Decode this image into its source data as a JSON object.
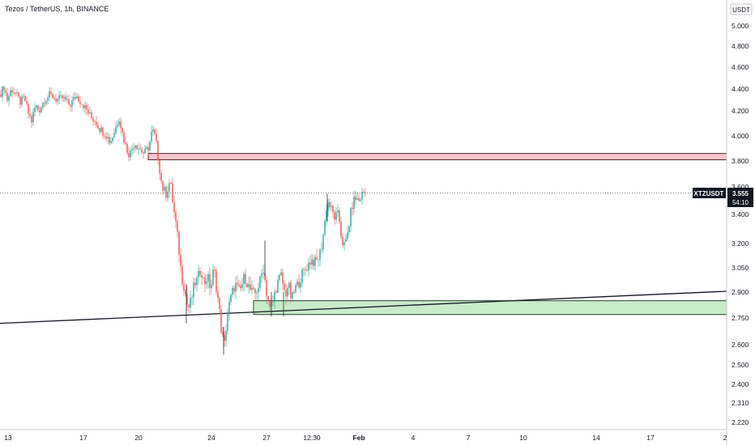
{
  "chart_data": {
    "type": "candlestick",
    "title": "Tezos / TetherUS, 1h, BINANCE",
    "currency_label": "USDT",
    "ticker": {
      "symbol": "XTZUSDT",
      "price": "3.555",
      "countdown": "54:10"
    },
    "y_ticks": [
      "5.000",
      "4.800",
      "4.600",
      "4.400",
      "4.200",
      "4.000",
      "3.800",
      "3.600",
      "3.400",
      "3.200",
      "3.050",
      "2.900",
      "2.750",
      "2.600",
      "2.500",
      "2.400",
      "2.310",
      "2.220"
    ],
    "x_ticks": [
      {
        "label": "13",
        "bold": false
      },
      {
        "label": "17",
        "bold": false
      },
      {
        "label": "20",
        "bold": false
      },
      {
        "label": "24",
        "bold": false
      },
      {
        "label": "27",
        "bold": false
      },
      {
        "label": "12:30",
        "bold": false
      },
      {
        "label": "Feb",
        "bold": true
      },
      {
        "label": "4",
        "bold": false
      },
      {
        "label": "7",
        "bold": false
      },
      {
        "label": "10",
        "bold": false
      },
      {
        "label": "14",
        "bold": false
      },
      {
        "label": "17",
        "bold": false
      },
      {
        "label": "2",
        "bold": false
      }
    ],
    "price_path": [
      [
        0,
        4.35
      ],
      [
        5,
        4.42
      ],
      [
        9,
        4.3
      ],
      [
        14,
        4.4
      ],
      [
        20,
        4.35
      ],
      [
        25,
        4.28
      ],
      [
        30,
        4.32
      ],
      [
        35,
        4.18
      ],
      [
        39,
        4.12
      ],
      [
        44,
        4.25
      ],
      [
        48,
        4.2
      ],
      [
        55,
        4.3
      ],
      [
        62,
        4.35
      ],
      [
        70,
        4.3
      ],
      [
        78,
        4.32
      ],
      [
        86,
        4.25
      ],
      [
        94,
        4.34
      ],
      [
        100,
        4.28
      ],
      [
        106,
        4.22
      ],
      [
        112,
        4.15
      ],
      [
        118,
        4.12
      ],
      [
        124,
        4.05
      ],
      [
        130,
        4.02
      ],
      [
        136,
        3.95
      ],
      [
        142,
        4.05
      ],
      [
        147,
        4.15
      ],
      [
        151,
        4.02
      ],
      [
        156,
        3.9
      ],
      [
        160,
        3.85
      ],
      [
        166,
        3.95
      ],
      [
        172,
        3.9
      ],
      [
        178,
        3.86
      ],
      [
        184,
        3.92
      ],
      [
        188,
        4.05
      ],
      [
        192,
        3.98
      ],
      [
        196,
        3.78
      ],
      [
        200,
        3.6
      ],
      [
        205,
        3.55
      ],
      [
        210,
        3.65
      ],
      [
        214,
        3.45
      ],
      [
        218,
        3.3
      ],
      [
        221,
        3.15
      ],
      [
        224,
        3.0
      ],
      [
        228,
        2.92
      ],
      [
        232,
        2.8
      ],
      [
        236,
        2.85
      ],
      [
        240,
        2.95
      ],
      [
        244,
        2.98
      ],
      [
        248,
        3.05
      ],
      [
        252,
        2.95
      ],
      [
        256,
        3.0
      ],
      [
        260,
        2.92
      ],
      [
        264,
        3.05
      ],
      [
        268,
        2.9
      ],
      [
        271,
        2.78
      ],
      [
        274,
        2.65
      ],
      [
        277,
        2.6
      ],
      [
        280,
        2.75
      ],
      [
        284,
        2.85
      ],
      [
        290,
        2.95
      ],
      [
        296,
        2.9
      ],
      [
        302,
        3.0
      ],
      [
        308,
        2.92
      ],
      [
        314,
        2.88
      ],
      [
        320,
        2.95
      ],
      [
        325,
        3.05
      ],
      [
        329,
        2.9
      ],
      [
        333,
        2.8
      ],
      [
        337,
        2.85
      ],
      [
        342,
        2.95
      ],
      [
        347,
        3.0
      ],
      [
        352,
        2.88
      ],
      [
        356,
        2.95
      ],
      [
        360,
        2.85
      ],
      [
        364,
        2.92
      ],
      [
        368,
        2.95
      ],
      [
        372,
        3.0
      ],
      [
        378,
        3.05
      ],
      [
        384,
        3.1
      ],
      [
        390,
        3.08
      ],
      [
        396,
        3.15
      ],
      [
        400,
        3.3
      ],
      [
        404,
        3.5
      ],
      [
        408,
        3.45
      ],
      [
        413,
        3.38
      ],
      [
        418,
        3.4
      ],
      [
        422,
        3.22
      ],
      [
        426,
        3.18
      ],
      [
        430,
        3.3
      ],
      [
        434,
        3.45
      ],
      [
        438,
        3.52
      ],
      [
        443,
        3.5
      ],
      [
        448,
        3.56
      ],
      [
        452,
        3.555
      ]
    ],
    "wick_spikes": [
      [
        230,
        2.72,
        2.95
      ],
      [
        276,
        2.55,
        2.7
      ],
      [
        327,
        3.0,
        3.22
      ],
      [
        335,
        2.76,
        2.9
      ],
      [
        350,
        2.76,
        2.9
      ],
      [
        404,
        3.35,
        3.55
      ]
    ],
    "resistance_zone": {
      "x_start": 183,
      "x_end": 897,
      "y_top": 3.86,
      "y_bottom": 3.81
    },
    "support_zone": {
      "x_start": 313,
      "x_end": 897,
      "y_top": 2.85,
      "y_bottom": 2.77
    },
    "trendline": [
      [
        0,
        2.72
      ],
      [
        897,
        2.905
      ]
    ],
    "colors": {
      "up": "#26a69a",
      "down": "#ef5350",
      "resistance": "#f5c6cf",
      "support": "#c8ebc9"
    }
  }
}
